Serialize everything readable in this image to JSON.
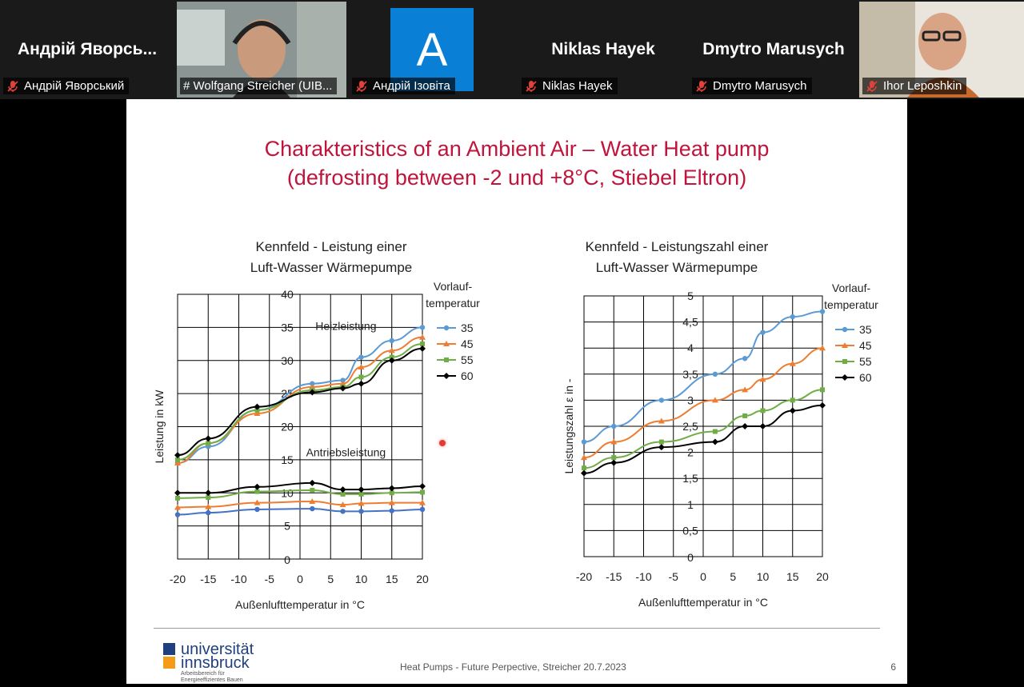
{
  "participants": [
    {
      "big_name": "Андрій Яворсь...",
      "label": "Андрій Яворський",
      "muted": true
    },
    {
      "big_name": "",
      "label": "# Wolfgang Streicher (UIB...",
      "muted": false
    },
    {
      "big_name": "A",
      "label": "Андрій Ізовіта",
      "muted": true
    },
    {
      "big_name": "Niklas Hayek",
      "label": "Niklas Hayek",
      "muted": true
    },
    {
      "big_name": "Dmytro Marusych",
      "label": "Dmytro Marusych",
      "muted": true
    },
    {
      "big_name": "",
      "label": "Ihor Leposhkin",
      "muted": true
    }
  ],
  "slide": {
    "title_line1": "Charakteristics of an Ambient Air – Water Heat pump",
    "title_line2": "(defrosting between -2 und +8°C, Stiebel Eltron)",
    "footer": "Heat Pumps - Future Perpective, Streicher  20.7.2023",
    "page": "6",
    "logo": {
      "line1": "universität",
      "line2": "innsbruck",
      "sub1": "Arbeitsbereich für",
      "sub2": "Energieeffizientes Bauen"
    }
  },
  "colors": {
    "title": "#c0143c",
    "s35": "#5b9bd5",
    "s45": "#ed7d31",
    "s55": "#70ad47",
    "s60": "#000000",
    "s35_drive": "#4472c4",
    "active_border": "#8bc34a"
  },
  "chart_data": [
    {
      "type": "line",
      "title_line1": "Kennfeld - Leistung einer",
      "title_line2": "Luft-Wasser Wärmepumpe",
      "xlabel": "Außenlufttemperatur in °C",
      "ylabel": "Leistung in kW",
      "xlim": [
        -20,
        20
      ],
      "ylim": [
        0,
        40
      ],
      "xticks": [
        -20,
        -15,
        -10,
        -5,
        0,
        5,
        10,
        15,
        20
      ],
      "yticks": [
        0,
        5,
        10,
        15,
        20,
        25,
        30,
        35,
        40
      ],
      "grid": true,
      "legend_title_line1": "Vorlauf-",
      "legend_title_line2": "temperatur",
      "legend_position": "right",
      "annotations": [
        "Heizleistung",
        "Antriebsleistung"
      ],
      "legend": [
        "35",
        "45",
        "55",
        "60"
      ],
      "series": [
        {
          "name": "35",
          "group": "Heizleistung",
          "x": [
            -20,
            -15,
            -7,
            2,
            7,
            10,
            15,
            20
          ],
          "values": [
            14.5,
            17,
            22.5,
            26.5,
            27,
            30.5,
            33,
            35
          ]
        },
        {
          "name": "45",
          "group": "Heizleistung",
          "x": [
            -20,
            -15,
            -7,
            2,
            7,
            10,
            15,
            20
          ],
          "values": [
            14.5,
            17.5,
            22,
            26,
            26.5,
            29,
            31.5,
            33.5
          ]
        },
        {
          "name": "55",
          "group": "Heizleistung",
          "x": [
            -20,
            -15,
            -7,
            2,
            7,
            10,
            15,
            20
          ],
          "values": [
            15,
            17.5,
            22.5,
            25.5,
            26,
            27.5,
            30.5,
            32.5
          ]
        },
        {
          "name": "60",
          "group": "Heizleistung",
          "x": [
            -20,
            -15,
            -7,
            2,
            7,
            10,
            15,
            20
          ],
          "values": [
            15.7,
            18.2,
            23,
            25.2,
            25.8,
            26.5,
            30,
            31.8
          ]
        },
        {
          "name": "35",
          "group": "Antriebsleistung",
          "x": [
            -20,
            -15,
            -7,
            2,
            7,
            10,
            15,
            20
          ],
          "values": [
            6.7,
            7,
            7.5,
            7.6,
            7.2,
            7.2,
            7.3,
            7.5
          ]
        },
        {
          "name": "45",
          "group": "Antriebsleistung",
          "x": [
            -20,
            -15,
            -7,
            2,
            7,
            10,
            15,
            20
          ],
          "values": [
            7.8,
            7.9,
            8.5,
            8.7,
            8.2,
            8.4,
            8.5,
            8.5
          ]
        },
        {
          "name": "55",
          "group": "Antriebsleistung",
          "x": [
            -20,
            -15,
            -7,
            2,
            7,
            10,
            15,
            20
          ],
          "values": [
            9.2,
            9.3,
            10.2,
            10.4,
            9.8,
            9.8,
            10,
            10.1
          ]
        },
        {
          "name": "60",
          "group": "Antriebsleistung",
          "x": [
            -20,
            -15,
            -7,
            2,
            7,
            10,
            15,
            20
          ],
          "values": [
            10,
            10,
            10.9,
            11.5,
            10.5,
            10.5,
            10.7,
            11
          ]
        }
      ]
    },
    {
      "type": "line",
      "title_line1": "Kennfeld - Leistungszahl einer",
      "title_line2": "Luft-Wasser Wärmepumpe",
      "xlabel": "Außenlufttemperatur in °C",
      "ylabel": "Leistungszahl ε in -",
      "xlim": [
        -20,
        20
      ],
      "ylim": [
        0,
        5
      ],
      "xticks": [
        -20,
        -15,
        -10,
        -5,
        0,
        5,
        10,
        15,
        20
      ],
      "yticks": [
        "0",
        "0,5",
        "1",
        "1,5",
        "2",
        "2,5",
        "3",
        "3,5",
        "4",
        "4,5",
        "5"
      ],
      "grid": true,
      "legend_title_line1": "Vorlauf-",
      "legend_title_line2": "temperatur",
      "legend_position": "right",
      "legend": [
        "35",
        "45",
        "55",
        "60"
      ],
      "series": [
        {
          "name": "35",
          "x": [
            -20,
            -15,
            -7,
            2,
            7,
            10,
            15,
            20
          ],
          "values": [
            2.2,
            2.5,
            3,
            3.5,
            3.8,
            4.3,
            4.6,
            4.7
          ]
        },
        {
          "name": "45",
          "x": [
            -20,
            -15,
            -7,
            2,
            7,
            10,
            15,
            20
          ],
          "values": [
            1.9,
            2.2,
            2.6,
            3,
            3.2,
            3.4,
            3.7,
            4
          ]
        },
        {
          "name": "55",
          "x": [
            -20,
            -15,
            -7,
            2,
            7,
            10,
            15,
            20
          ],
          "values": [
            1.7,
            1.9,
            2.2,
            2.4,
            2.7,
            2.8,
            3,
            3.2
          ]
        },
        {
          "name": "60",
          "x": [
            -20,
            -15,
            -7,
            2,
            7,
            10,
            15,
            20
          ],
          "values": [
            1.6,
            1.8,
            2.1,
            2.2,
            2.5,
            2.5,
            2.8,
            2.9
          ]
        }
      ]
    }
  ]
}
